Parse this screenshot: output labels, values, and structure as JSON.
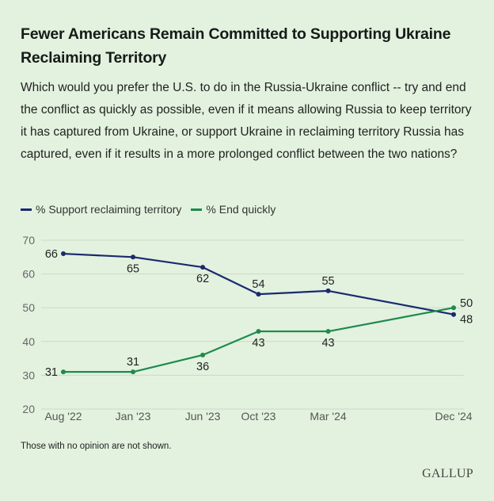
{
  "title": "Fewer Americans Remain Committed to Supporting Ukraine Reclaiming Territory",
  "question": "Which would you prefer the U.S. to do in the Russia-Ukraine conflict -- try and end the conflict as quickly as possible, even if it means allowing Russia to keep territory it has captured from Ukraine, or support Ukraine in reclaiming territory Russia has captured, even if it results in a more prolonged conflict between the two nations?",
  "note": "Those with no opinion are not shown.",
  "brand": "GALLUP",
  "colors": {
    "support": "#1a2a6e",
    "end": "#1e8a4c",
    "grid": "#c9d9c6",
    "background": "#e3f2df"
  },
  "chart_data": {
    "type": "line",
    "title": "Fewer Americans Remain Committed to Supporting Ukraine Reclaiming Territory",
    "xlabel": "",
    "ylabel": "",
    "x": [
      "Aug '22",
      "Jan '23",
      "Jun '23",
      "Oct '23",
      "Mar '24",
      "Dec '24"
    ],
    "x_months": [
      0,
      5,
      10,
      14,
      19,
      28
    ],
    "ylim": [
      20,
      70
    ],
    "yticks": [
      20,
      30,
      40,
      50,
      60,
      70
    ],
    "grid": true,
    "legend": "top-left",
    "series": [
      {
        "name": "% Support reclaiming territory",
        "key": "support",
        "values": [
          66,
          65,
          62,
          54,
          55,
          48
        ],
        "label_pos": [
          "left",
          "below",
          "below",
          "above",
          "above",
          "right-below"
        ]
      },
      {
        "name": "% End quickly",
        "key": "end",
        "values": [
          31,
          31,
          36,
          43,
          43,
          50
        ],
        "label_pos": [
          "left",
          "above",
          "below",
          "below",
          "below",
          "right-above"
        ]
      }
    ]
  }
}
